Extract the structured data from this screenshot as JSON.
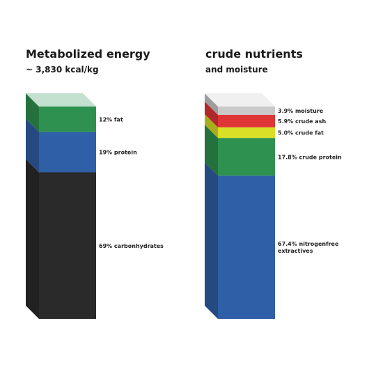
{
  "chart_data": [
    {
      "type": "bar",
      "title": "Metabolized energy",
      "subtitle": "~ 3,830 kcal/kg",
      "segments": [
        {
          "label": "69% carbonhydrates",
          "value": 69,
          "color": "#2a2a2a"
        },
        {
          "label": "19% protein",
          "value": 19,
          "color": "#2f5fa6"
        },
        {
          "label": "12% fat",
          "value": 12,
          "color": "#2e9150"
        }
      ]
    },
    {
      "type": "bar",
      "title": "crude nutrients",
      "subtitle": "and moisture",
      "segments": [
        {
          "label": "67.4% nitrogenfree extractives",
          "lines": [
            "67.4% nitrogenfree",
            "extractives"
          ],
          "value": 67.4,
          "color": "#2f5fa6"
        },
        {
          "label": "17.8% crude protein",
          "value": 17.8,
          "color": "#2e9150"
        },
        {
          "label": "5.0% crude fat",
          "value": 5.0,
          "color": "#d9de27"
        },
        {
          "label": "5.9% crude ash",
          "value": 5.9,
          "color": "#e03536"
        },
        {
          "label": "3.9% moisture",
          "value": 3.9,
          "color": "#c9c9c9"
        }
      ]
    }
  ]
}
